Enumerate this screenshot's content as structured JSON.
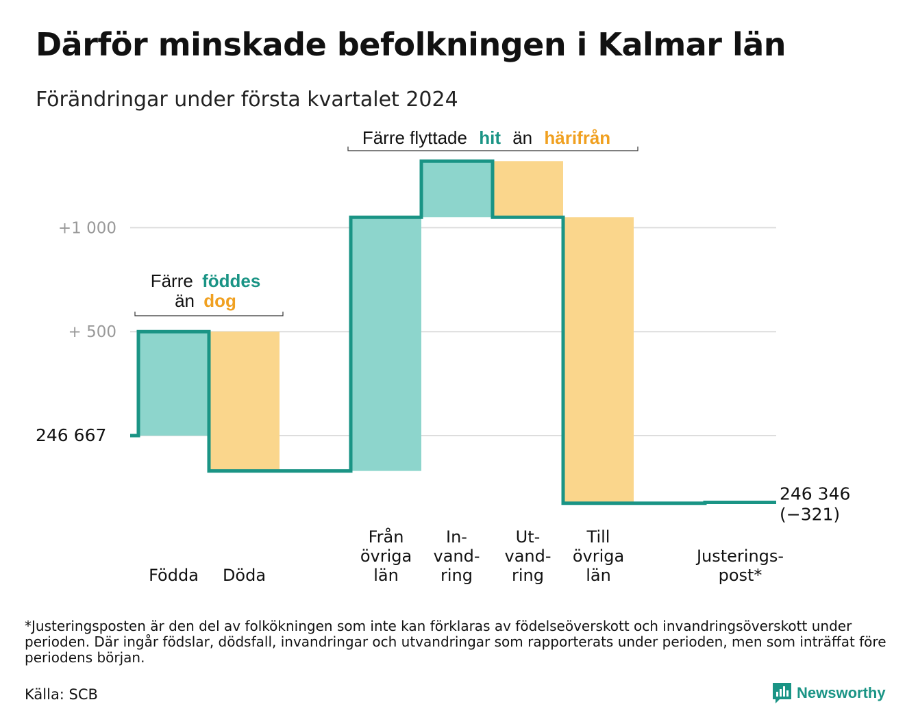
{
  "title": "Därför minskade befolkningen i Kalmar län",
  "subtitle": "Förändringar under första kvartalet 2024",
  "footnote": "*Justeringsposten är den del av folkökningen som inte kan förklaras av födelseöverskott och invandringsöverskott under perioden. Där ingår födslar, dödsfall, invandringar och utvandringar som rapporterats under perioden, men som inträffat före periodens början.",
  "source": "Källa: SCB",
  "brand": "Newsworthy",
  "colors": {
    "increase": "#8dd5cc",
    "decrease": "#fad68c",
    "line": "#1a9485",
    "orange_text": "#f0a020",
    "grid": "#dddddd",
    "axis_text": "#999999"
  },
  "chart_data": {
    "type": "bar",
    "variant": "waterfall",
    "start_value": 246667,
    "start_label": "246   667",
    "end_value": 246346,
    "end_label": "246 346",
    "end_change_label": "(−321)",
    "y_ticks": [
      {
        "value": 247167,
        "label": "+   500"
      },
      {
        "value": 247667,
        "label": "+1   000"
      }
    ],
    "grid": true,
    "steps": [
      {
        "category": "Födda",
        "label_lines": [
          "Födda"
        ],
        "change": 500,
        "kind": "increase"
      },
      {
        "category": "Döda",
        "label_lines": [
          "Döda"
        ],
        "change": -670,
        "kind": "decrease"
      },
      {
        "category": "Från övriga län",
        "label_lines": [
          "Från",
          "övriga",
          "län"
        ],
        "change": 1220,
        "kind": "increase"
      },
      {
        "category": "Invandring",
        "label_lines": [
          "In-",
          "vand-",
          "ring"
        ],
        "change": 270,
        "kind": "increase"
      },
      {
        "category": "Utvandring",
        "label_lines": [
          "Ut-",
          "vand-",
          "ring"
        ],
        "change": -270,
        "kind": "decrease"
      },
      {
        "category": "Till övriga län",
        "label_lines": [
          "Till",
          "övriga",
          "län"
        ],
        "change": -1375,
        "kind": "decrease"
      },
      {
        "category": "Justeringspost*",
        "label_lines": [
          "Justerings-",
          "post*"
        ],
        "change": 4,
        "kind": "adjustment"
      }
    ],
    "annotations": {
      "births": {
        "line1": "Färre",
        "highlight1": "föddes",
        "line2": "än",
        "highlight2": "dog"
      },
      "migration": {
        "prefix": "Färre flyttade",
        "highlight1": "hit",
        "middle": "än",
        "highlight2": "härifrån"
      }
    }
  }
}
